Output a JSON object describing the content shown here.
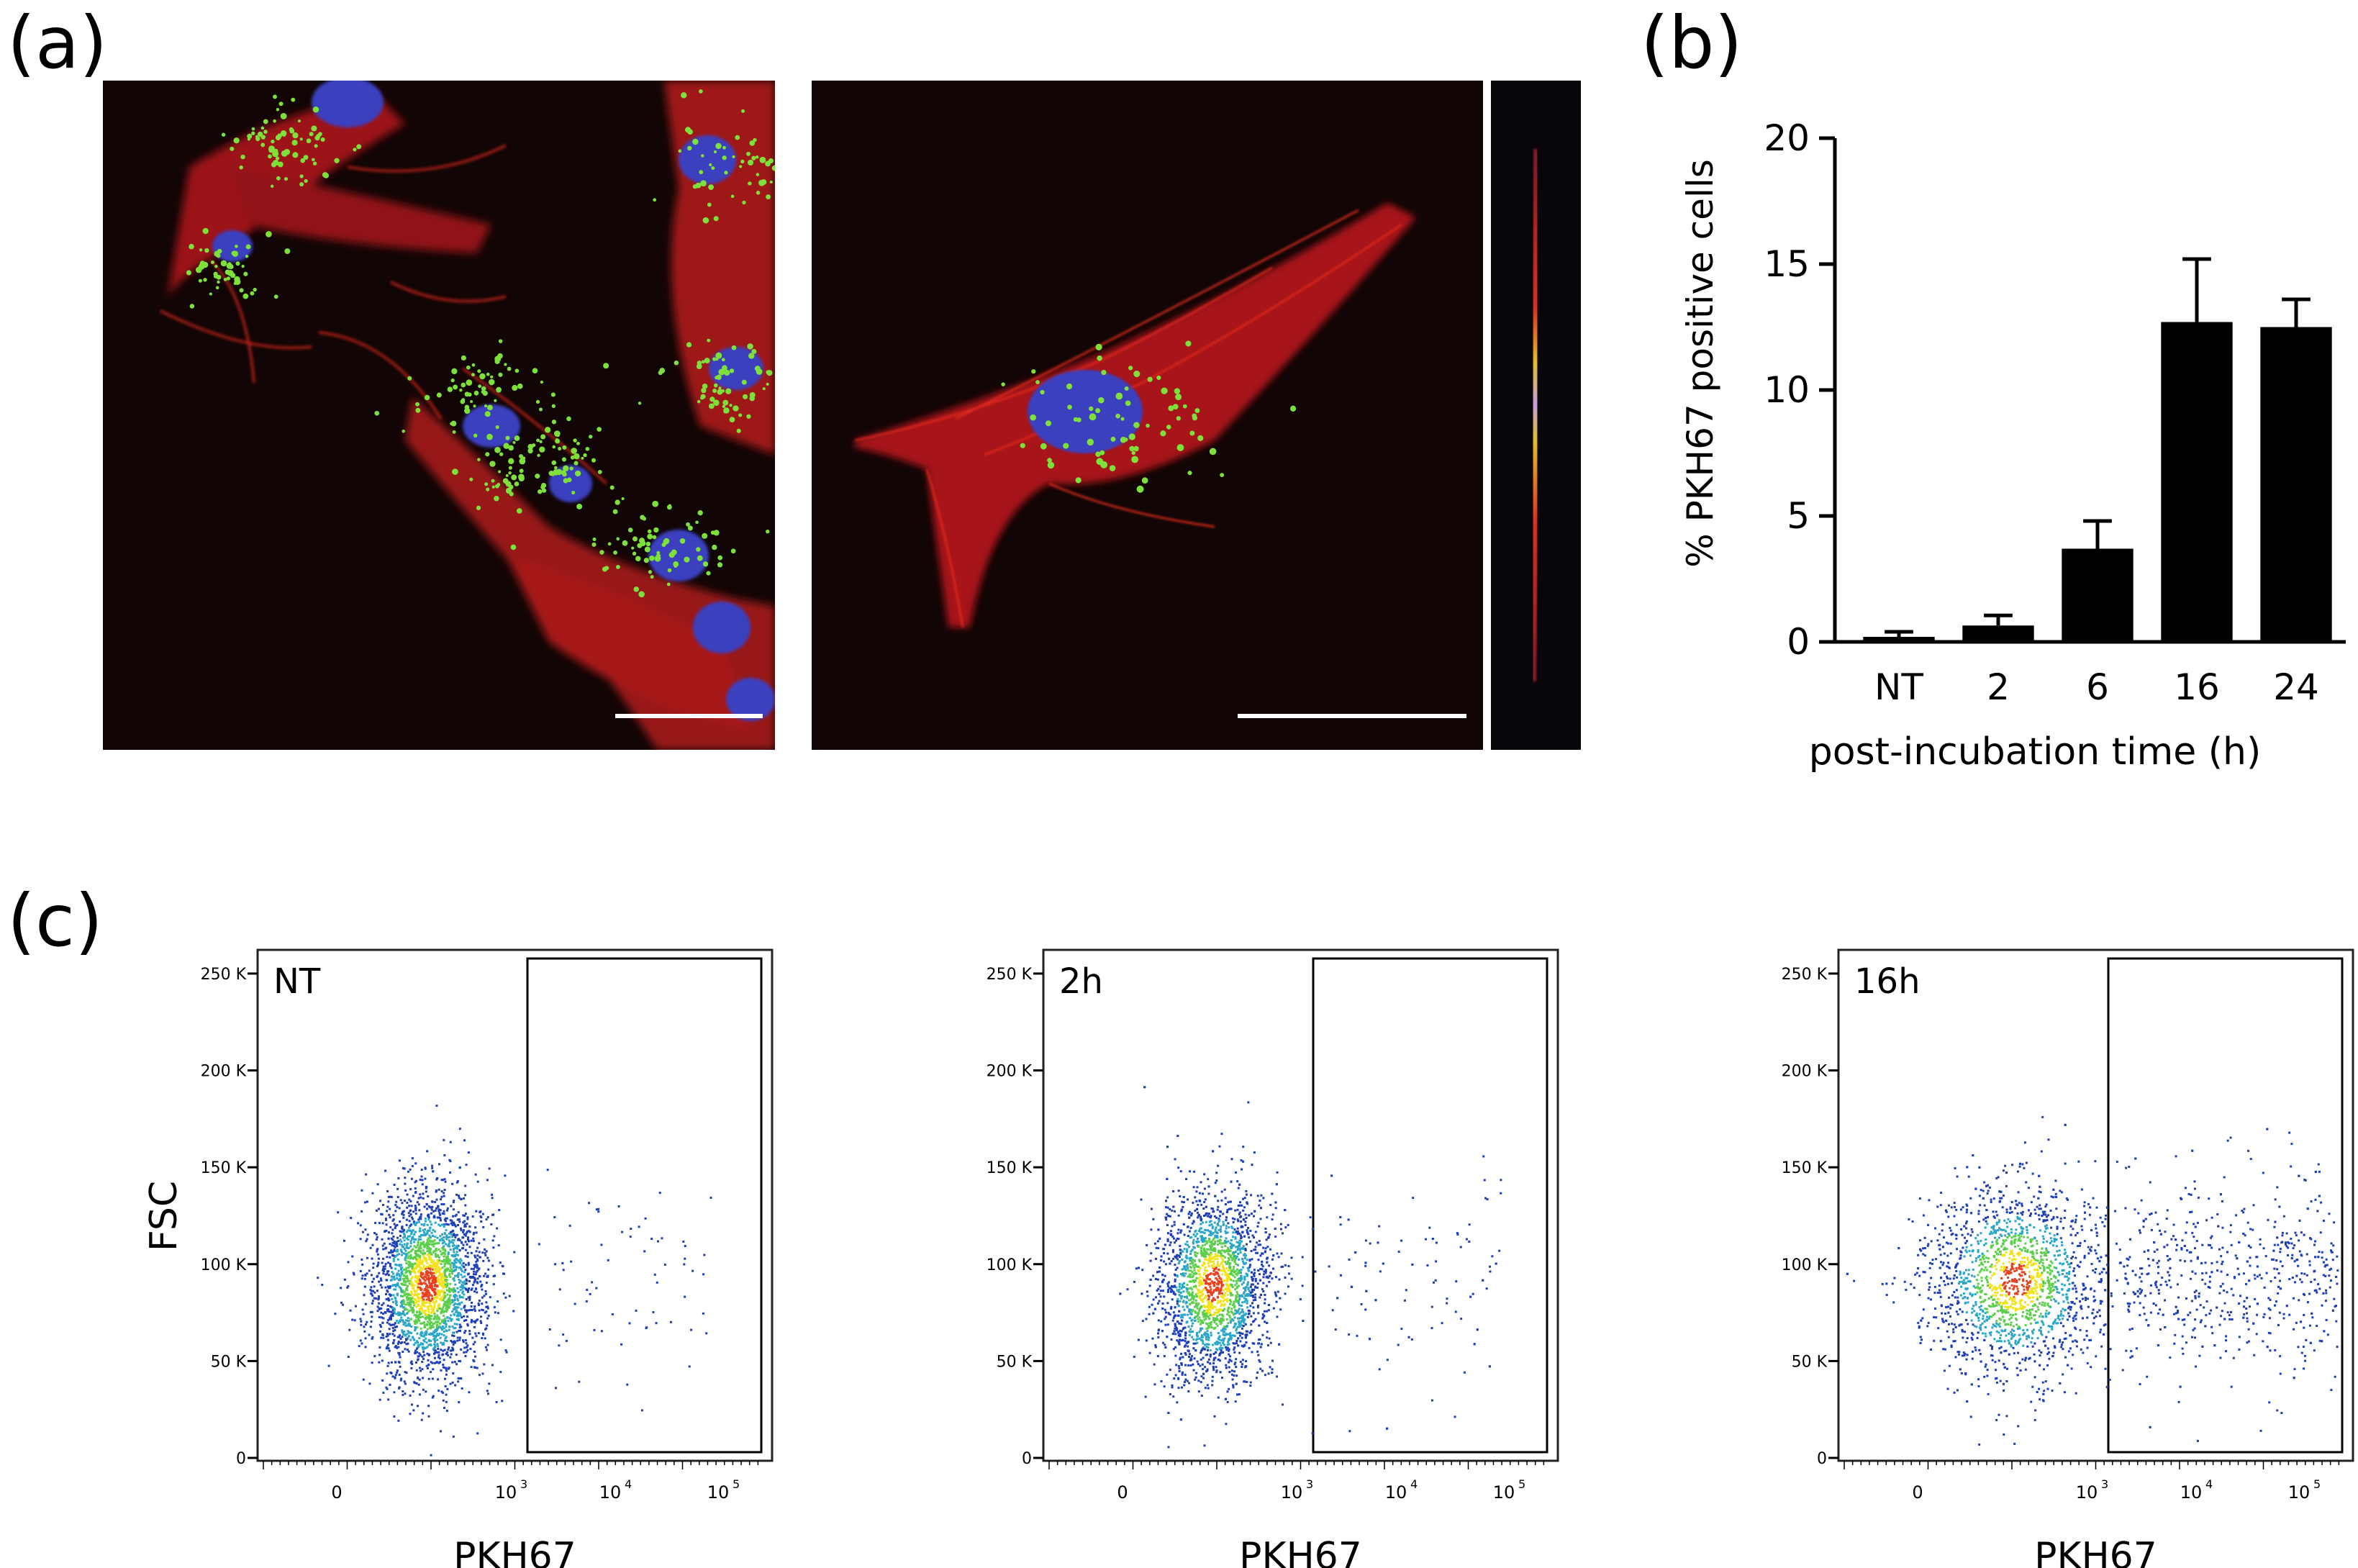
{
  "panels": {
    "a": {
      "label": "(a)"
    },
    "b": {
      "label": "(b)"
    },
    "c": {
      "label": "(c)"
    }
  },
  "microscopy_colors": {
    "background": "#110605",
    "actin": "#d8201c",
    "nucleus": "#3b3fbf",
    "vesicles": "#7ee03a",
    "scalebar": "#ffffff"
  },
  "chart_data": [
    {
      "type": "bar",
      "panel": "b",
      "categories": [
        "NT",
        "2",
        "6",
        "16",
        "24"
      ],
      "values": [
        0.2,
        0.65,
        3.7,
        12.7,
        12.5
      ],
      "errors": [
        0.2,
        0.4,
        1.1,
        2.5,
        1.1
      ],
      "ylabel": "% PKH67 positive cells",
      "xlabel": "post-incubation time (h)",
      "ylim": [
        0,
        20
      ],
      "yticks": [
        0,
        5,
        10,
        15,
        20
      ],
      "bar_color": "#000000"
    },
    {
      "type": "scatter",
      "panel": "c",
      "plots": [
        {
          "label": "NT",
          "centroid": [
            2.3,
            90
          ],
          "spread": [
            0.4,
            20
          ],
          "positive_fraction": 0.02
        },
        {
          "label": "2h",
          "centroid": [
            2.3,
            90
          ],
          "spread": [
            0.4,
            18
          ],
          "positive_fraction": 0.04
        },
        {
          "label": "16h",
          "centroid": [
            2.5,
            92
          ],
          "spread": [
            0.55,
            20
          ],
          "positive_fraction": 0.22
        }
      ],
      "xlabel": "PKH67",
      "ylabel": "FSC",
      "yticks": [
        "0",
        "50 K",
        "100 K",
        "150 K",
        "200 K",
        "250 K"
      ],
      "xticks": [
        "0",
        "10",
        "10",
        "10"
      ],
      "xtick_exponents": [
        "",
        "3",
        "4",
        "5"
      ],
      "gate": "rectangle, PKH67 > 10^3",
      "density_colors": [
        "#1f3fb8",
        "#2aa6c8",
        "#5ccf4a",
        "#f2e21c",
        "#e8401c"
      ]
    }
  ]
}
